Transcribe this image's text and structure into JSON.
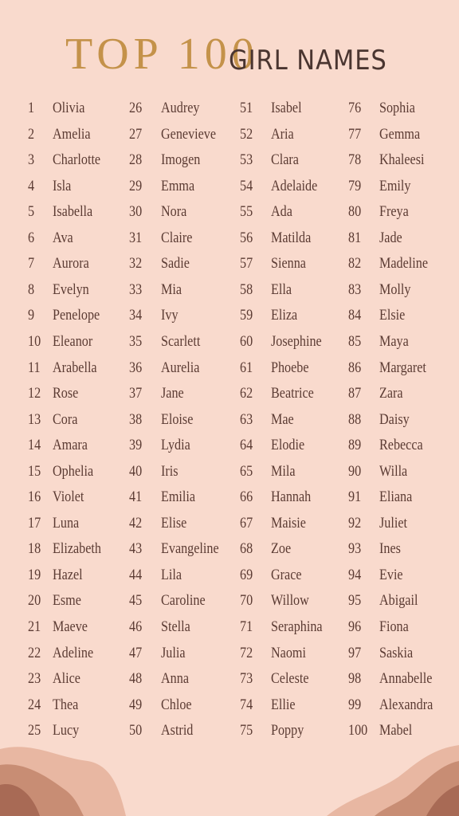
{
  "header": {
    "title_main": "TOP 100",
    "title_sub": "GIRL NAMES"
  },
  "names": [
    {
      "rank": 1,
      "name": "Olivia"
    },
    {
      "rank": 2,
      "name": "Amelia"
    },
    {
      "rank": 3,
      "name": "Charlotte"
    },
    {
      "rank": 4,
      "name": "Isla"
    },
    {
      "rank": 5,
      "name": "Isabella"
    },
    {
      "rank": 6,
      "name": "Ava"
    },
    {
      "rank": 7,
      "name": "Aurora"
    },
    {
      "rank": 8,
      "name": "Evelyn"
    },
    {
      "rank": 9,
      "name": "Penelope"
    },
    {
      "rank": 10,
      "name": "Eleanor"
    },
    {
      "rank": 11,
      "name": "Arabella"
    },
    {
      "rank": 12,
      "name": "Rose"
    },
    {
      "rank": 13,
      "name": "Cora"
    },
    {
      "rank": 14,
      "name": "Amara"
    },
    {
      "rank": 15,
      "name": "Ophelia"
    },
    {
      "rank": 16,
      "name": "Violet"
    },
    {
      "rank": 17,
      "name": "Luna"
    },
    {
      "rank": 18,
      "name": "Elizabeth"
    },
    {
      "rank": 19,
      "name": "Hazel"
    },
    {
      "rank": 20,
      "name": "Esme"
    },
    {
      "rank": 21,
      "name": "Maeve"
    },
    {
      "rank": 22,
      "name": "Adeline"
    },
    {
      "rank": 23,
      "name": "Alice"
    },
    {
      "rank": 24,
      "name": "Thea"
    },
    {
      "rank": 25,
      "name": "Lucy"
    },
    {
      "rank": 26,
      "name": "Audrey"
    },
    {
      "rank": 27,
      "name": "Genevieve"
    },
    {
      "rank": 28,
      "name": "Imogen"
    },
    {
      "rank": 29,
      "name": "Emma"
    },
    {
      "rank": 30,
      "name": "Nora"
    },
    {
      "rank": 31,
      "name": "Claire"
    },
    {
      "rank": 32,
      "name": "Sadie"
    },
    {
      "rank": 33,
      "name": "Mia"
    },
    {
      "rank": 34,
      "name": "Ivy"
    },
    {
      "rank": 35,
      "name": "Scarlett"
    },
    {
      "rank": 36,
      "name": "Aurelia"
    },
    {
      "rank": 37,
      "name": "Jane"
    },
    {
      "rank": 38,
      "name": "Eloise"
    },
    {
      "rank": 39,
      "name": "Lydia"
    },
    {
      "rank": 40,
      "name": "Iris"
    },
    {
      "rank": 41,
      "name": "Emilia"
    },
    {
      "rank": 42,
      "name": "Elise"
    },
    {
      "rank": 43,
      "name": "Evangeline"
    },
    {
      "rank": 44,
      "name": "Lila"
    },
    {
      "rank": 45,
      "name": "Caroline"
    },
    {
      "rank": 46,
      "name": "Stella"
    },
    {
      "rank": 47,
      "name": "Julia"
    },
    {
      "rank": 48,
      "name": "Anna"
    },
    {
      "rank": 49,
      "name": "Chloe"
    },
    {
      "rank": 50,
      "name": "Astrid"
    },
    {
      "rank": 51,
      "name": "Isabel"
    },
    {
      "rank": 52,
      "name": "Aria"
    },
    {
      "rank": 53,
      "name": "Clara"
    },
    {
      "rank": 54,
      "name": "Adelaide"
    },
    {
      "rank": 55,
      "name": "Ada"
    },
    {
      "rank": 56,
      "name": "Matilda"
    },
    {
      "rank": 57,
      "name": "Sienna"
    },
    {
      "rank": 58,
      "name": "Ella"
    },
    {
      "rank": 59,
      "name": "Eliza"
    },
    {
      "rank": 60,
      "name": "Josephine"
    },
    {
      "rank": 61,
      "name": "Phoebe"
    },
    {
      "rank": 62,
      "name": "Beatrice"
    },
    {
      "rank": 63,
      "name": "Mae"
    },
    {
      "rank": 64,
      "name": "Elodie"
    },
    {
      "rank": 65,
      "name": "Mila"
    },
    {
      "rank": 66,
      "name": "Hannah"
    },
    {
      "rank": 67,
      "name": "Maisie"
    },
    {
      "rank": 68,
      "name": "Zoe"
    },
    {
      "rank": 69,
      "name": "Grace"
    },
    {
      "rank": 70,
      "name": "Willow"
    },
    {
      "rank": 71,
      "name": "Seraphina"
    },
    {
      "rank": 72,
      "name": "Naomi"
    },
    {
      "rank": 73,
      "name": "Celeste"
    },
    {
      "rank": 74,
      "name": "Ellie"
    },
    {
      "rank": 75,
      "name": "Poppy"
    },
    {
      "rank": 76,
      "name": "Sophia"
    },
    {
      "rank": 77,
      "name": "Gemma"
    },
    {
      "rank": 78,
      "name": "Khaleesi"
    },
    {
      "rank": 79,
      "name": "Emily"
    },
    {
      "rank": 80,
      "name": "Freya"
    },
    {
      "rank": 81,
      "name": "Jade"
    },
    {
      "rank": 82,
      "name": "Madeline"
    },
    {
      "rank": 83,
      "name": "Molly"
    },
    {
      "rank": 84,
      "name": "Elsie"
    },
    {
      "rank": 85,
      "name": "Maya"
    },
    {
      "rank": 86,
      "name": "Margaret"
    },
    {
      "rank": 87,
      "name": "Zara"
    },
    {
      "rank": 88,
      "name": "Daisy"
    },
    {
      "rank": 89,
      "name": "Rebecca"
    },
    {
      "rank": 90,
      "name": "Willa"
    },
    {
      "rank": 91,
      "name": "Eliana"
    },
    {
      "rank": 92,
      "name": "Juliet"
    },
    {
      "rank": 93,
      "name": "Ines"
    },
    {
      "rank": 94,
      "name": "Evie"
    },
    {
      "rank": 95,
      "name": "Abigail"
    },
    {
      "rank": 96,
      "name": "Fiona"
    },
    {
      "rank": 97,
      "name": "Saskia"
    },
    {
      "rank": 98,
      "name": "Annabelle"
    },
    {
      "rank": 99,
      "name": "Alexandra"
    },
    {
      "rank": 100,
      "name": "Mabel"
    }
  ]
}
